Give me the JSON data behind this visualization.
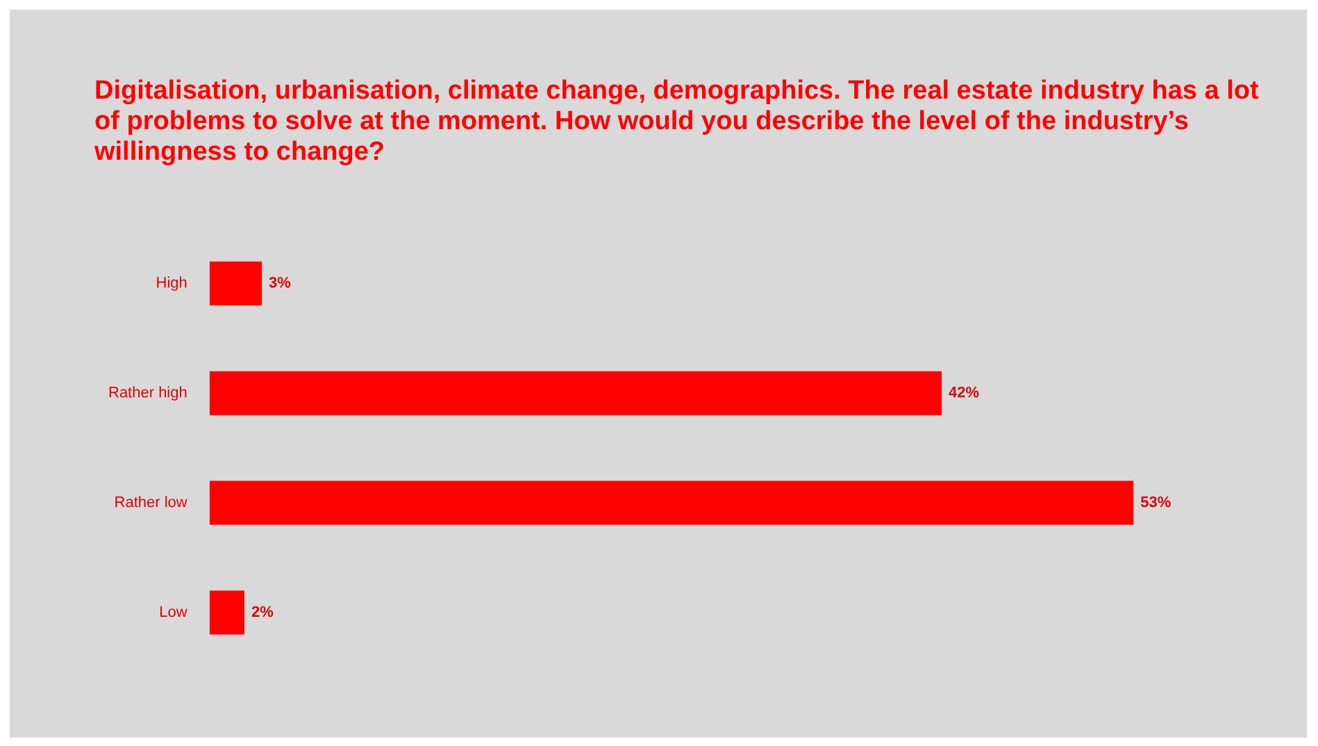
{
  "chart_data": {
    "type": "bar",
    "orientation": "horizontal",
    "title": "Digitalisation, urbanisation, climate change, demographics. The real estate industry has a lot of problems to solve at the moment. How would you describe the level of the industry’s willingness to change?",
    "categories": [
      "High",
      "Rather high",
      "Rather low",
      "Low"
    ],
    "values": [
      3,
      42,
      53,
      2
    ],
    "value_labels": [
      "3%",
      "42%",
      "53%",
      "2%"
    ],
    "color": "#ff0000",
    "grid": false,
    "legend": false
  }
}
